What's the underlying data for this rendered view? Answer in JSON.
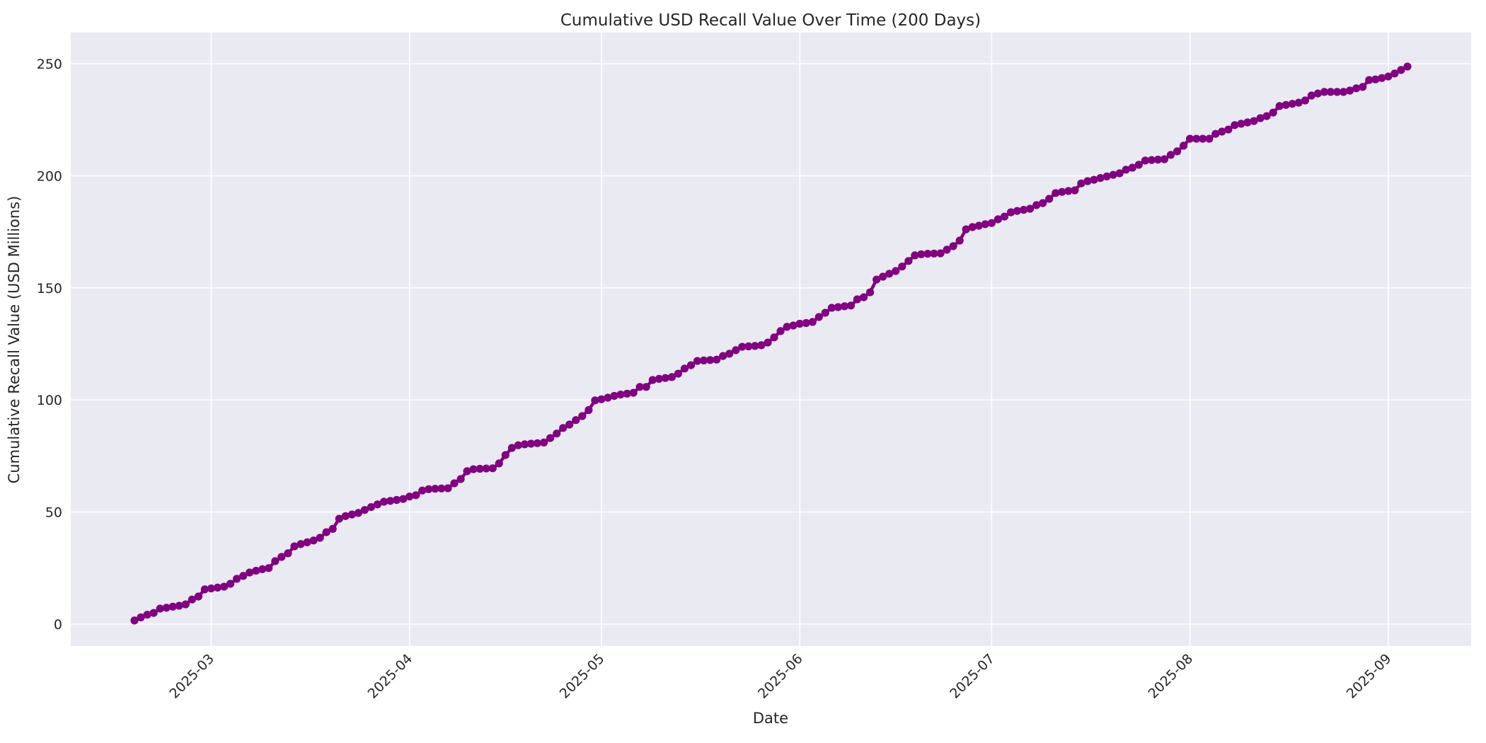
{
  "chart_data": {
    "type": "line",
    "title": "Cumulative USD Recall Value Over Time (200 Days)",
    "xlabel": "Date",
    "ylabel": "Cumulative Recall Value (USD Millions)",
    "n_points": 200,
    "start_date": "2025-02-17",
    "end_date": "2025-09-04",
    "frequency": "daily",
    "x_tick_labels": [
      "2025-03",
      "2025-04",
      "2025-05",
      "2025-06",
      "2025-07",
      "2025-08",
      "2025-09"
    ],
    "y_ticks": [
      0,
      50,
      100,
      150,
      200,
      250
    ],
    "ylim": [
      -10.7,
      261.0
    ],
    "grid": "on",
    "legend": "none",
    "line_color": "#800080",
    "marker": "circle",
    "plot_bg_color": "#EAEAF2",
    "grid_color": "#FFFFFF",
    "text_color": "#262626",
    "values": [
      1.6,
      3.0,
      4.2,
      5.0,
      6.9,
      7.3,
      7.8,
      8.2,
      8.8,
      11.0,
      12.3,
      15.5,
      15.9,
      16.3,
      16.7,
      18.0,
      20.2,
      21.5,
      23.0,
      23.8,
      24.5,
      25.0,
      28.1,
      30.0,
      31.6,
      34.7,
      35.7,
      36.5,
      37.3,
      38.5,
      41.0,
      42.5,
      47.0,
      48.2,
      48.9,
      49.6,
      50.9,
      52.2,
      53.4,
      54.6,
      55.0,
      55.4,
      55.8,
      56.9,
      57.5,
      59.6,
      60.2,
      60.4,
      60.5,
      60.6,
      62.8,
      64.7,
      68.2,
      69.1,
      69.3,
      69.4,
      69.5,
      71.7,
      75.4,
      78.6,
      79.8,
      80.2,
      80.5,
      80.7,
      81.0,
      83.0,
      85.0,
      87.5,
      89.0,
      91.0,
      92.8,
      95.5,
      99.8,
      100.3,
      101.0,
      101.8,
      102.4,
      102.8,
      103.2,
      105.8,
      105.8,
      108.9,
      109.4,
      109.8,
      110.2,
      111.7,
      114.0,
      115.5,
      117.4,
      117.6,
      117.8,
      118.0,
      119.6,
      120.6,
      122.2,
      123.7,
      123.9,
      124.1,
      124.4,
      125.6,
      127.9,
      130.7,
      132.6,
      133.2,
      134.0,
      134.3,
      134.8,
      137.0,
      138.9,
      141.1,
      141.4,
      141.8,
      142.1,
      144.9,
      145.8,
      148.0,
      153.7,
      155.0,
      156.3,
      157.5,
      159.5,
      162.0,
      164.5,
      165.0,
      165.2,
      165.3,
      165.4,
      167.0,
      168.6,
      171.1,
      176.1,
      177.1,
      177.7,
      178.4,
      178.9,
      180.6,
      181.8,
      183.7,
      184.3,
      184.8,
      185.3,
      186.9,
      187.8,
      189.7,
      192.3,
      192.8,
      193.2,
      193.5,
      196.6,
      197.6,
      198.2,
      199.0,
      199.7,
      200.4,
      201.1,
      202.7,
      203.6,
      204.9,
      206.8,
      207.0,
      207.2,
      207.4,
      209.3,
      210.9,
      213.4,
      216.5,
      216.5,
      216.5,
      216.5,
      218.7,
      219.7,
      220.6,
      222.6,
      223.2,
      223.8,
      224.4,
      225.7,
      226.6,
      228.2,
      231.1,
      231.6,
      232.1,
      232.6,
      233.6,
      235.8,
      236.7,
      237.4,
      237.4,
      237.4,
      237.4,
      238.0,
      239.0,
      239.6,
      242.7,
      243.0,
      243.6,
      244.3,
      245.6,
      247.2,
      248.7
    ]
  }
}
